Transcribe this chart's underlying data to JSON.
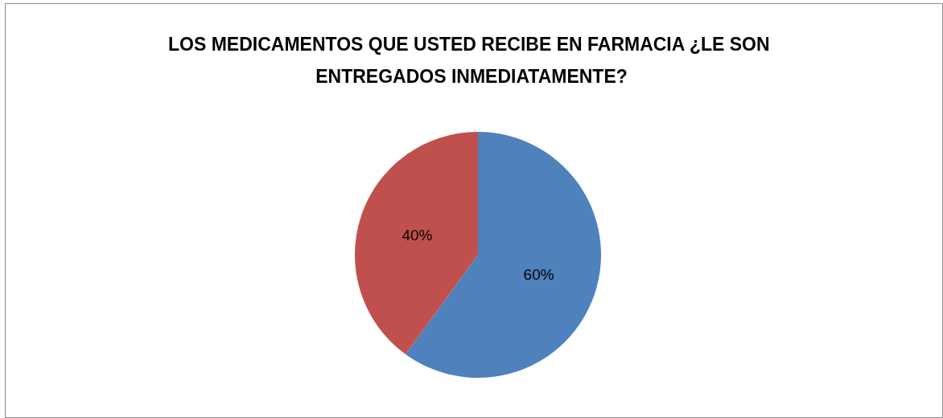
{
  "chart_data": {
    "type": "pie",
    "title": "LOS MEDICAMENTOS QUE USTED RECIBE EN FARMACIA ¿LE SON ENTREGADOS INMEDIATAMENTE?",
    "categories": [
      null,
      null
    ],
    "values": [
      60,
      40
    ],
    "colors": [
      "#4f81bd",
      "#c0504d"
    ],
    "value_labels": [
      "60%",
      "40%"
    ]
  }
}
